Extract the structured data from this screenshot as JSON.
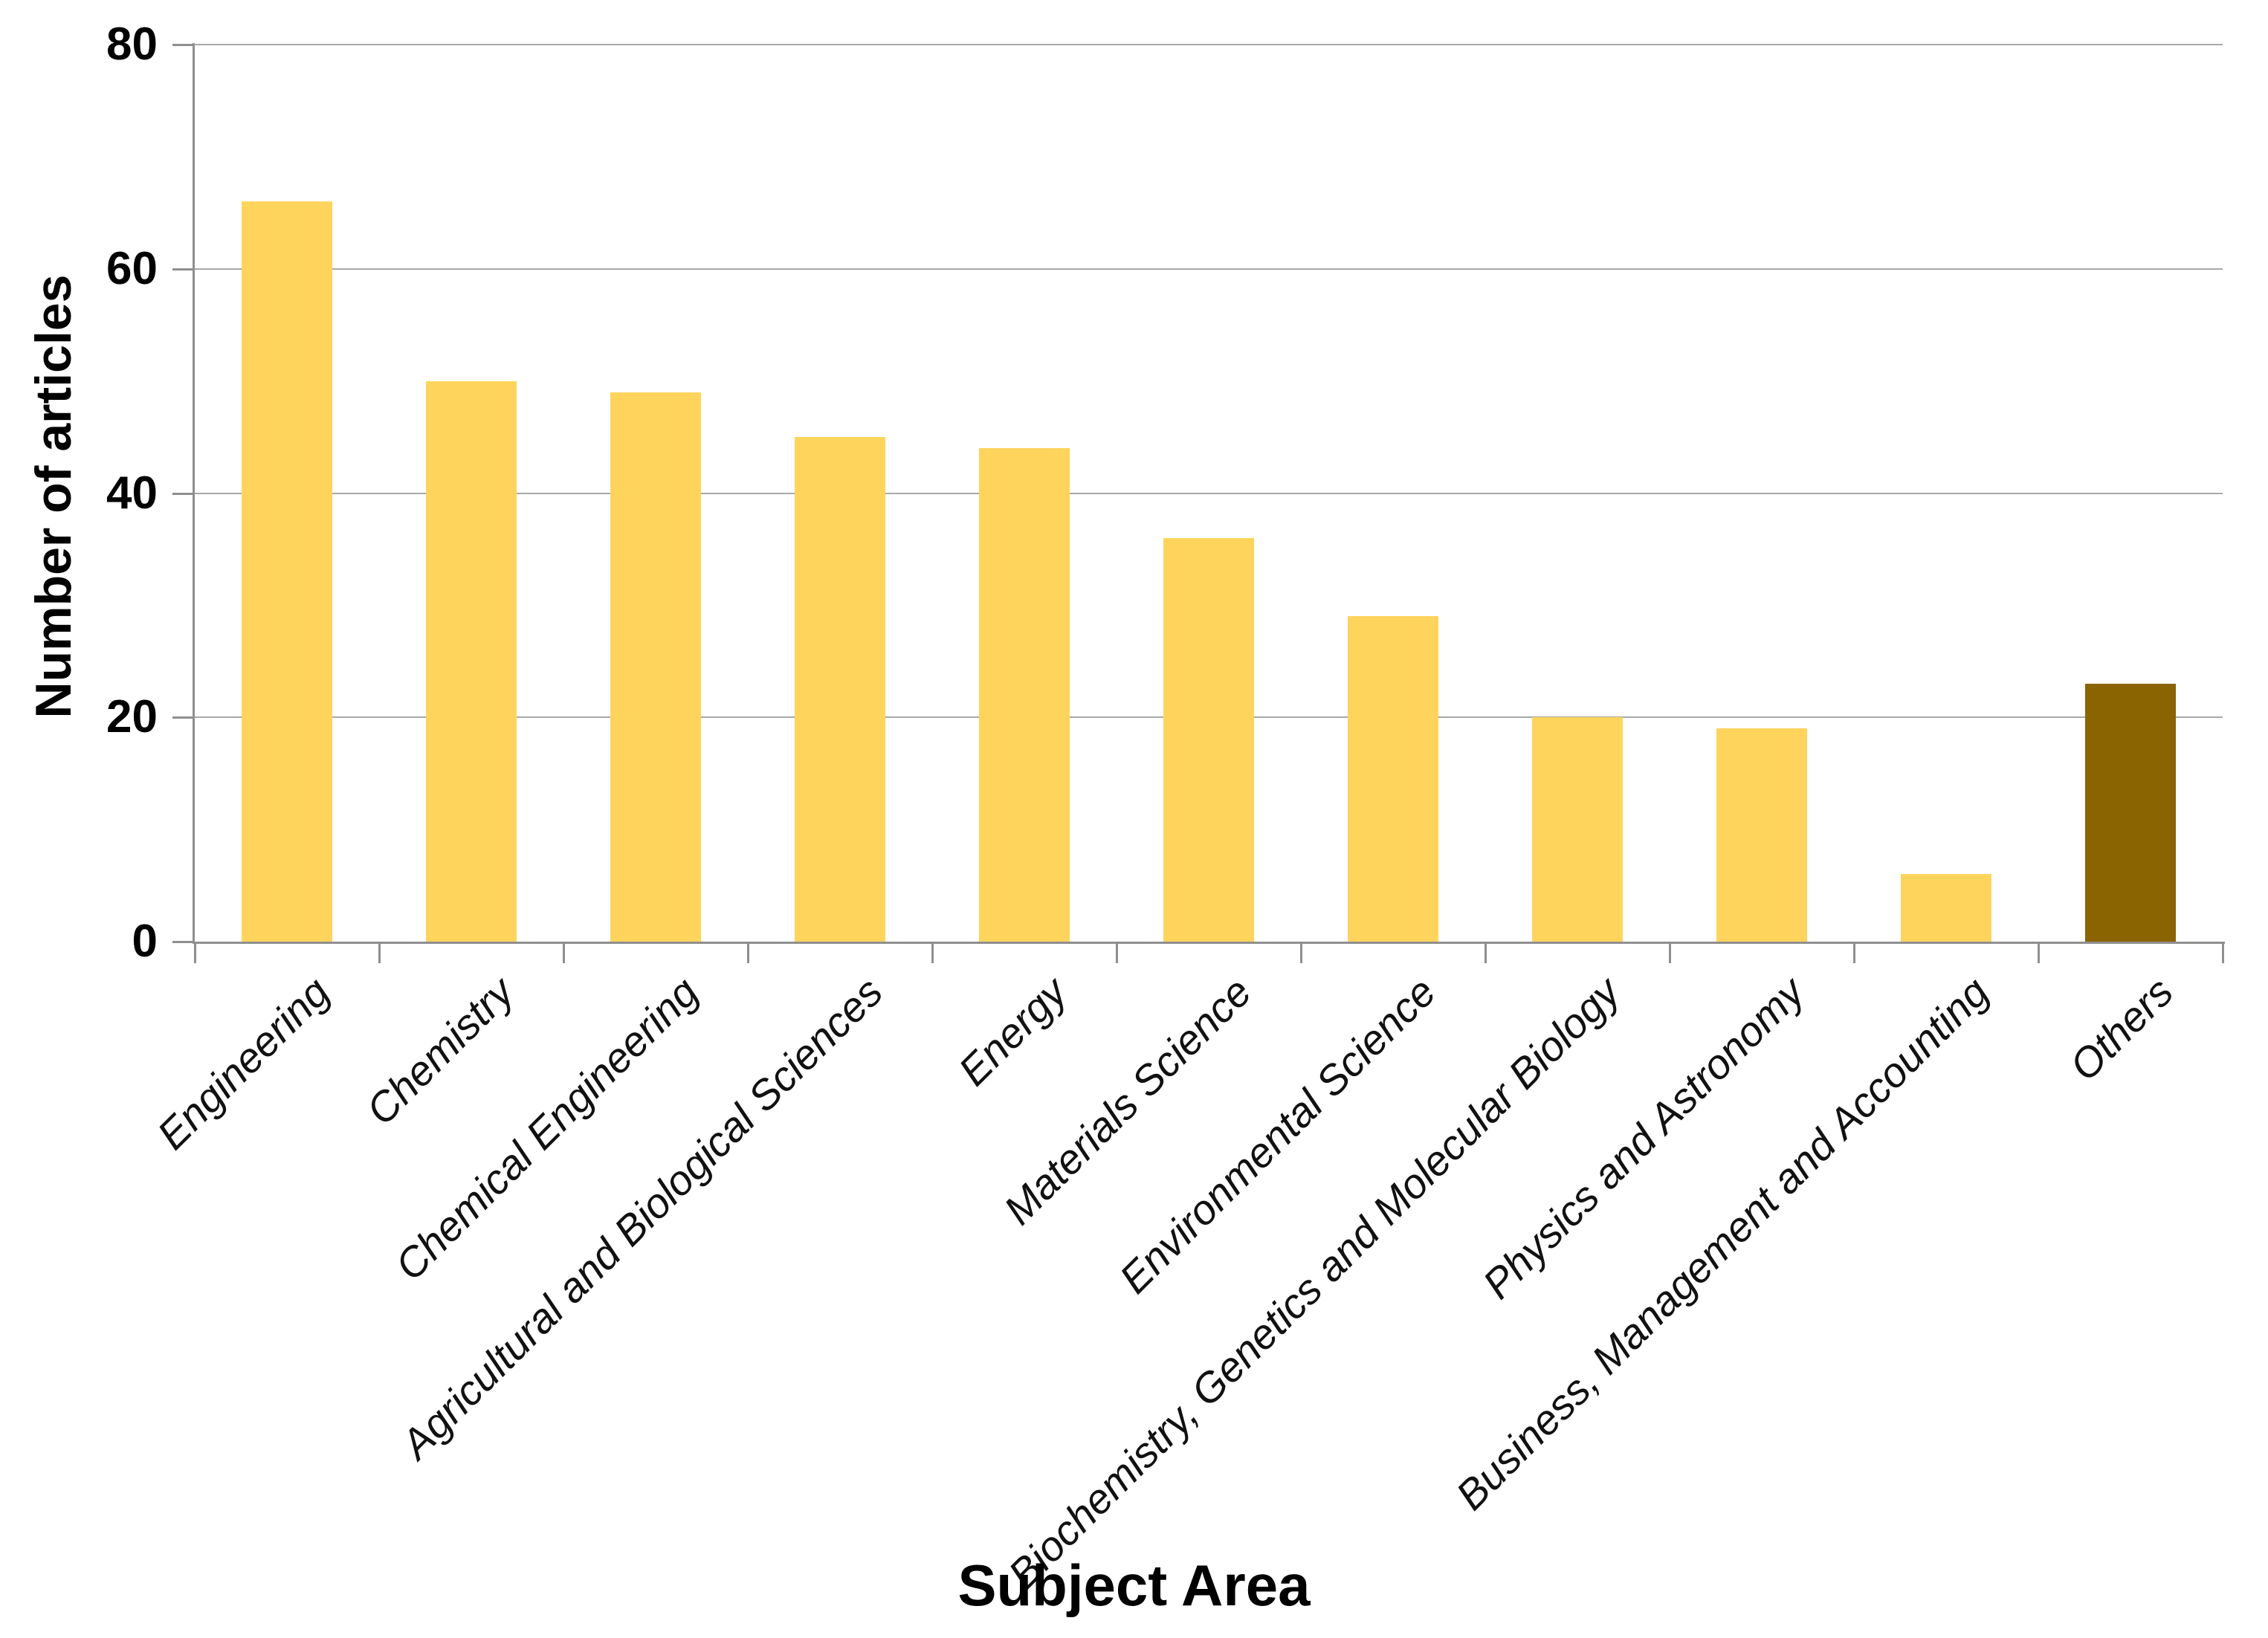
{
  "chart_data": {
    "type": "bar",
    "title": "",
    "xlabel": "Subject Area",
    "ylabel": "Number of articles",
    "categories": [
      "Engineering",
      "Chemistry",
      "Chemical Engineering",
      "Agricultural and Biological Sciences",
      "Energy",
      "Materials Science",
      "Environmental Science",
      "Biochemistry, Genetics and Molecular Biology",
      "Physics and Astronomy",
      "Business, Management and Accounting",
      "Others"
    ],
    "values": [
      66,
      50,
      49,
      45,
      44,
      36,
      29,
      20,
      19,
      6,
      23
    ],
    "colors": [
      "#FFD45C",
      "#FFD45C",
      "#FFD45C",
      "#FFD45C",
      "#FFD45C",
      "#FFD45C",
      "#FFD45C",
      "#FFD45C",
      "#FFD45C",
      "#FFD45C",
      "#8A6400"
    ],
    "ylim": [
      0,
      80
    ],
    "yticks": [
      0,
      20,
      40,
      60,
      80
    ],
    "grid": "horizontal",
    "legend": "none",
    "bar_color_default": "#FFD45C",
    "others_bar_color": "#8A6400",
    "gridline_color": "#a8a8a8",
    "axis_color": "#8f8f8f",
    "text_color": "#000000",
    "background": "#FFFFFF"
  }
}
